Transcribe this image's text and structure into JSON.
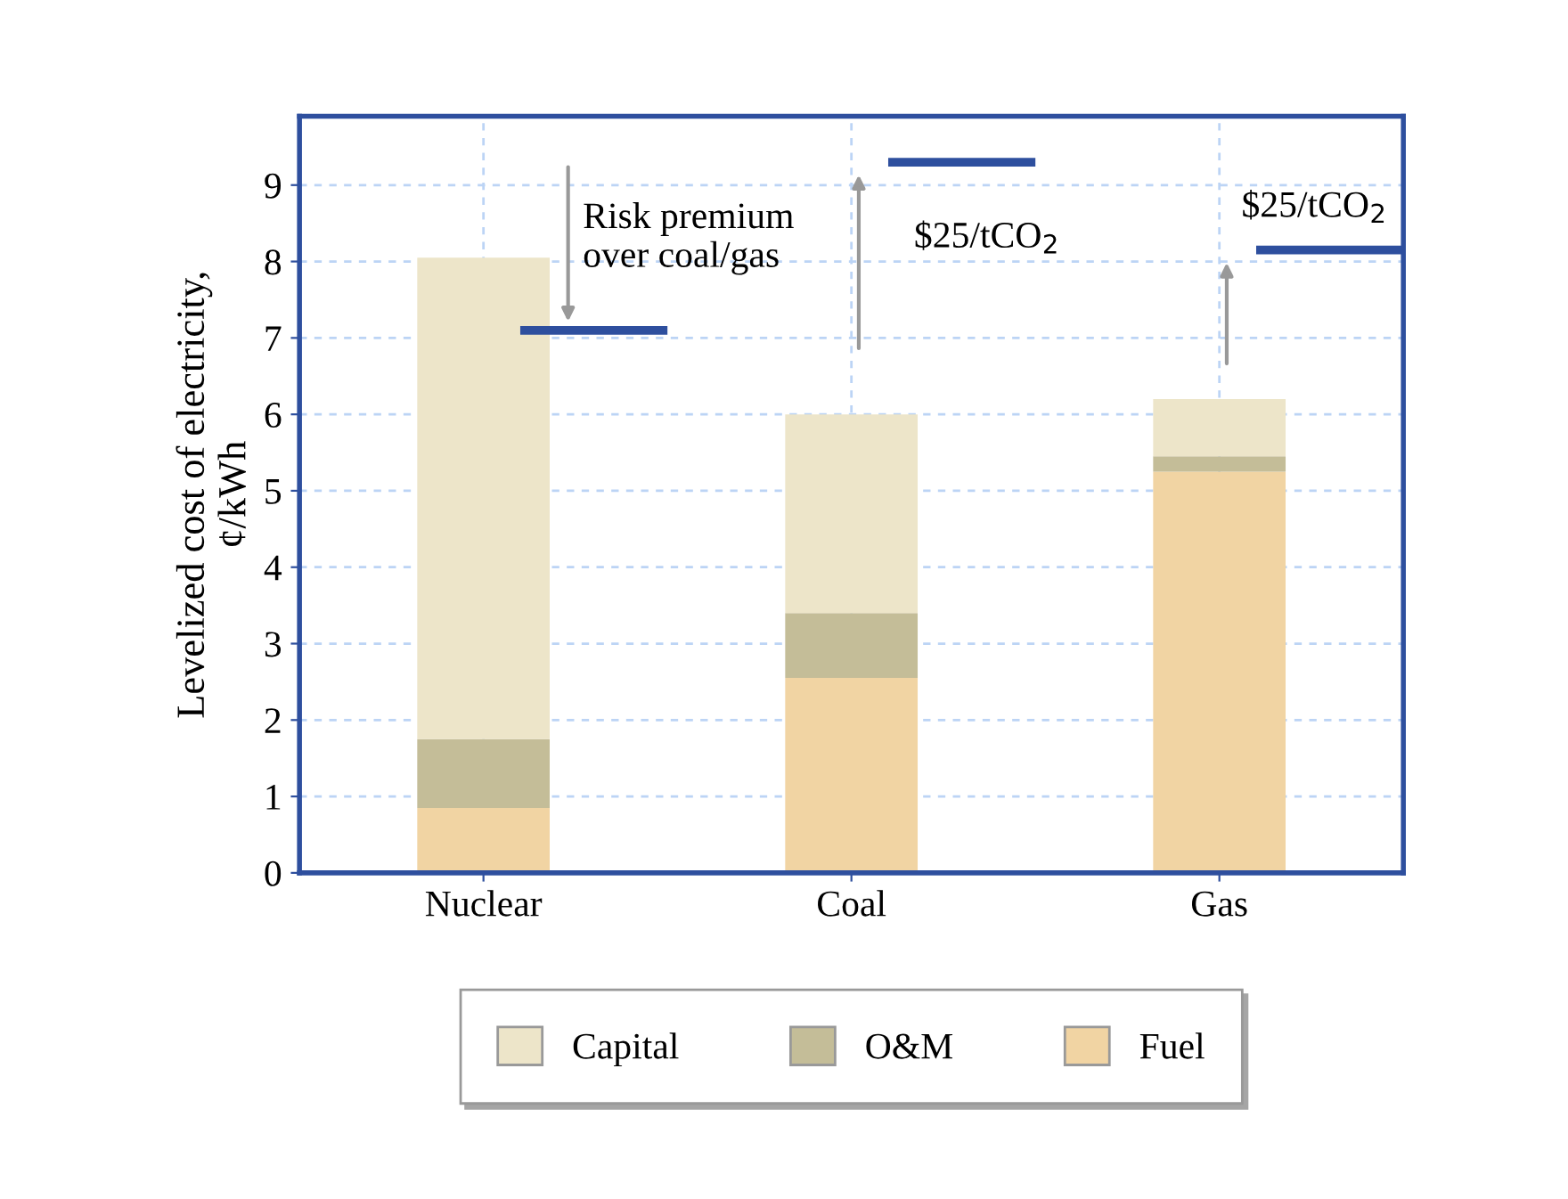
{
  "chart_data": {
    "type": "bar",
    "stacked": true,
    "ylabel": "Levelized cost of electricity,\n¢/kWh",
    "categories": [
      "Nuclear",
      "Coal",
      "Gas"
    ],
    "series": [
      {
        "name": "Fuel",
        "color": "#f1d4a3",
        "values": [
          0.85,
          2.55,
          5.25
        ]
      },
      {
        "name": "O&M",
        "color": "#c4bd98",
        "values": [
          0.9,
          0.85,
          0.2
        ]
      },
      {
        "name": "Capital",
        "color": "#ede5c9",
        "values": [
          6.3,
          2.6,
          0.75
        ]
      }
    ],
    "ref_lines": [
      {
        "axis": "y",
        "value": 7.1,
        "color": "#2e4f9e"
      },
      {
        "axis": "y",
        "value": 9.3,
        "color": "#2e4f9e"
      },
      {
        "axis": "y",
        "value": 8.15,
        "color": "#2e4f9e"
      }
    ],
    "annotations": [
      "Risk premium\nover coal/gas",
      "$25/tCO$_{2}$",
      "$25/tCO$_{2}$"
    ],
    "ylim": [
      0,
      9.9
    ],
    "yticks": [
      0,
      1,
      2,
      3,
      4,
      5,
      6,
      7,
      8,
      9
    ],
    "grid": true,
    "legend": "bottom"
  }
}
